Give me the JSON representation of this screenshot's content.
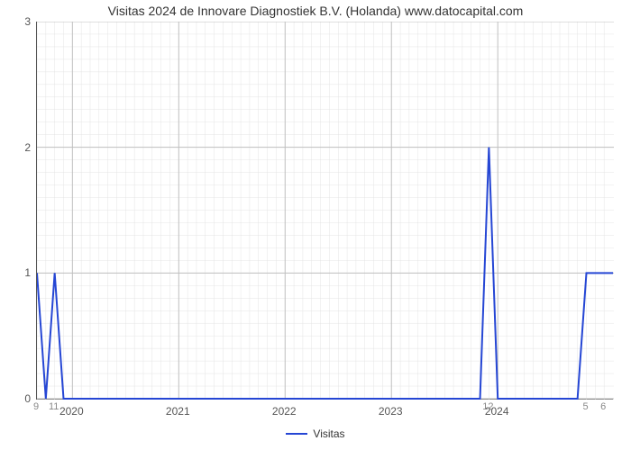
{
  "chart": {
    "type": "line",
    "title": "Visitas 2024 de Innovare Diagnostiek B.V. (Holanda) www.datocapital.com",
    "title_fontsize": 14,
    "background_color": "#ffffff",
    "plot_border_color": "#555555",
    "grid_major_color": "#bfbfbf",
    "grid_minor_color": "#e4e4e4",
    "x_axis": {
      "domain_min": 0,
      "domain_max": 65,
      "major_ticks": [
        {
          "pos": 4,
          "label": "2020"
        },
        {
          "pos": 16,
          "label": "2021"
        },
        {
          "pos": 28,
          "label": "2022"
        },
        {
          "pos": 40,
          "label": "2023"
        },
        {
          "pos": 52,
          "label": "2024"
        }
      ],
      "minor_tick_positions": [
        0,
        1,
        2,
        3,
        5,
        6,
        7,
        8,
        9,
        10,
        11,
        12,
        13,
        14,
        15,
        17,
        18,
        19,
        20,
        21,
        22,
        23,
        24,
        25,
        26,
        27,
        29,
        30,
        31,
        32,
        33,
        34,
        35,
        36,
        37,
        38,
        39,
        41,
        42,
        43,
        44,
        45,
        46,
        47,
        48,
        49,
        50,
        51,
        53,
        54,
        55,
        56,
        57,
        58,
        59,
        60,
        61,
        62,
        63,
        64
      ],
      "extra_labels": [
        {
          "pos": 0,
          "label": "9"
        },
        {
          "pos": 2,
          "label": "11"
        },
        {
          "pos": 51,
          "label": "12"
        },
        {
          "pos": 62,
          "label": "5"
        },
        {
          "pos": 64,
          "label": "6"
        }
      ],
      "label_fontsize": 12,
      "label_color": "#555555"
    },
    "y_axis": {
      "domain_min": 0,
      "domain_max": 3,
      "major_ticks": [
        0,
        1,
        2,
        3
      ],
      "minor_tick_step": 0.1,
      "label_fontsize": 12,
      "label_color": "#555555"
    },
    "series": [
      {
        "name": "Visitas",
        "color": "#2546d4",
        "line_width": 2.0,
        "x": [
          0,
          1,
          2,
          3,
          4,
          5,
          6,
          7,
          8,
          9,
          10,
          11,
          12,
          13,
          14,
          15,
          16,
          17,
          18,
          19,
          20,
          21,
          22,
          23,
          24,
          25,
          26,
          27,
          28,
          29,
          30,
          31,
          32,
          33,
          34,
          35,
          36,
          37,
          38,
          39,
          40,
          41,
          42,
          43,
          44,
          45,
          46,
          47,
          48,
          49,
          50,
          51,
          52,
          53,
          54,
          55,
          56,
          57,
          58,
          59,
          60,
          61,
          62,
          63,
          64,
          65
        ],
        "y": [
          1,
          0,
          1,
          0,
          0,
          0,
          0,
          0,
          0,
          0,
          0,
          0,
          0,
          0,
          0,
          0,
          0,
          0,
          0,
          0,
          0,
          0,
          0,
          0,
          0,
          0,
          0,
          0,
          0,
          0,
          0,
          0,
          0,
          0,
          0,
          0,
          0,
          0,
          0,
          0,
          0,
          0,
          0,
          0,
          0,
          0,
          0,
          0,
          0,
          0,
          0,
          2,
          0,
          0,
          0,
          0,
          0,
          0,
          0,
          0,
          0,
          0,
          1,
          1,
          1,
          1
        ]
      }
    ],
    "legend": {
      "position": "bottom-center",
      "items": [
        {
          "label": "Visitas",
          "color": "#2546d4"
        }
      ]
    }
  }
}
